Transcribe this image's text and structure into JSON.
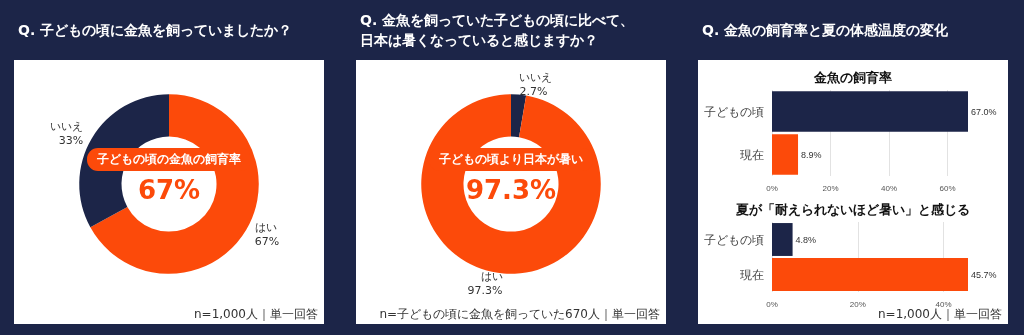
{
  "chart_data": [
    {
      "type": "donut",
      "title": "Q. 子どもの頃に金魚を飼っていましたか？",
      "categories": [
        "はい",
        "いいえ"
      ],
      "values": [
        67,
        33
      ],
      "value_labels": [
        "67%",
        "33%"
      ],
      "colors": [
        "#fc4a0a",
        "#1c2548"
      ],
      "annotations": [
        "子どもの頃の金魚の飼育率",
        "67%",
        "n=1,000人｜単一回答"
      ]
    },
    {
      "type": "donut",
      "title": "Q. 金魚を飼っていた子どもの頃に比べて、日本は暑くなっていると感じますか？",
      "categories": [
        "いいえ",
        "はい"
      ],
      "values": [
        2.7,
        97.3
      ],
      "value_labels": [
        "2.7%",
        "97.3%"
      ],
      "colors": [
        "#1c2548",
        "#fc4a0a"
      ],
      "annotations": [
        "子どもの頃より日本が暑い",
        "97.3%",
        "n=子どもの頃に金魚を飼っていた670人｜単一回答"
      ]
    },
    {
      "type": "bar",
      "orientation": "horizontal",
      "title": "Q. 金魚の飼育率と夏の体感温度の変化",
      "subtitle": "金魚の飼育率",
      "categories": [
        "子どもの頃",
        "現在"
      ],
      "values": [
        67.0,
        8.9
      ],
      "value_labels": [
        "67.0%",
        "8.9%"
      ],
      "colors": [
        "#1c2548",
        "#fc4a0a"
      ],
      "xlim": [
        0,
        67
      ],
      "xticks": [
        {
          "value": 0,
          "label": "0%"
        },
        {
          "value": 20,
          "label": "20%"
        },
        {
          "value": 40,
          "label": "40%"
        },
        {
          "value": 60,
          "label": "60%"
        }
      ],
      "grid": "x"
    },
    {
      "type": "bar",
      "orientation": "horizontal",
      "title": "夏が「耐えられないほど暑い」と感じる",
      "categories": [
        "子どもの頃",
        "現在"
      ],
      "values": [
        4.8,
        45.7
      ],
      "value_labels": [
        "4.8%",
        "45.7%"
      ],
      "colors": [
        "#1c2548",
        "#fc4a0a"
      ],
      "xlim": [
        0,
        45.7
      ],
      "xticks": [
        {
          "value": 0,
          "label": "0%"
        },
        {
          "value": 20,
          "label": "20%"
        },
        {
          "value": 40,
          "label": "40%"
        }
      ],
      "grid": "x",
      "annotations": [
        "n=1,000人｜単一回答"
      ]
    }
  ]
}
